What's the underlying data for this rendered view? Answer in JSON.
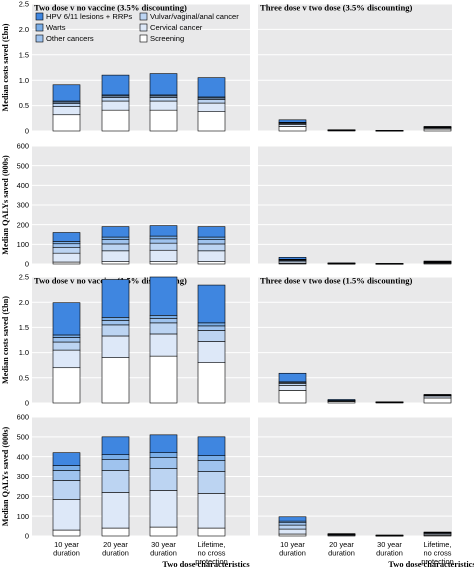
{
  "colors": {
    "panel_bg": "#e9e9ea",
    "grid": "#ffffff",
    "hpv": "#3f86e0",
    "warts": "#7aaee8",
    "other_cancers": "#9fc3ee",
    "vulvar": "#bcd4f2",
    "cervical": "#dde8f8",
    "screening": "#ffffff",
    "outline": "#000000"
  },
  "legend": {
    "items": [
      {
        "key": "hpv",
        "label": "HPV 6/11 lesions + RRPs"
      },
      {
        "key": "vulvar",
        "label": "Vulvar/vaginal/anal cancer"
      },
      {
        "key": "warts",
        "label": "Warts"
      },
      {
        "key": "cervical",
        "label": "Cervical cancer"
      },
      {
        "key": "other_cancers",
        "label": "Other cancers"
      },
      {
        "key": "screening",
        "label": "Screening"
      }
    ]
  },
  "x_title": "Two dose characteristics",
  "x_title_right": "Two dose characteristics",
  "chart_data": [
    {
      "type": "bar",
      "stacked": true,
      "title": "Two dose v no vaccine (3.5% discounting)",
      "ylabel": "Median costs saved (£bn)",
      "ylim": [
        0,
        2.5
      ],
      "yticks": [
        "0",
        "0.5",
        "1.0",
        "1.5",
        "2.0",
        "2.5"
      ],
      "categories": [
        "10 year duration",
        "20 year duration",
        "30 year duration",
        "Lifetime, no cross protection"
      ],
      "series": [
        {
          "key": "screening",
          "values": [
            0.32,
            0.41,
            0.41,
            0.38
          ]
        },
        {
          "key": "cervical",
          "values": [
            0.16,
            0.18,
            0.18,
            0.17
          ]
        },
        {
          "key": "vulvar",
          "values": [
            0.06,
            0.07,
            0.07,
            0.07
          ]
        },
        {
          "key": "other_cancers",
          "values": [
            0.03,
            0.03,
            0.03,
            0.03
          ]
        },
        {
          "key": "warts",
          "values": [
            0.02,
            0.02,
            0.02,
            0.02
          ]
        },
        {
          "key": "hpv",
          "values": [
            0.32,
            0.39,
            0.42,
            0.38
          ]
        }
      ]
    },
    {
      "type": "bar",
      "stacked": true,
      "title": "Three dose v two dose (3.5% discounting)",
      "ylabel": "",
      "ylim": [
        0,
        2.5
      ],
      "yticks": [],
      "categories": [
        "10 year duration",
        "20 year duration",
        "30 year duration",
        "Lifetime, no cross protection"
      ],
      "series": [
        {
          "key": "screening",
          "values": [
            0.09,
            0.01,
            0.005,
            0.04
          ]
        },
        {
          "key": "cervical",
          "values": [
            0.04,
            0.005,
            0.003,
            0.02
          ]
        },
        {
          "key": "vulvar",
          "values": [
            0.02,
            0.002,
            0.001,
            0.01
          ]
        },
        {
          "key": "other_cancers",
          "values": [
            0.01,
            0.002,
            0.001,
            0.005
          ]
        },
        {
          "key": "warts",
          "values": [
            0.01,
            0.001,
            0.0,
            0.005
          ]
        },
        {
          "key": "hpv",
          "values": [
            0.05,
            0.005,
            0.002,
            0.01
          ]
        }
      ]
    },
    {
      "type": "bar",
      "stacked": true,
      "title": "",
      "ylabel": "Median QALYs saved (000s)",
      "ylim": [
        0,
        600
      ],
      "yticks": [
        "0",
        "100",
        "200",
        "300",
        "400",
        "500",
        "600"
      ],
      "categories": [
        "10 year duration",
        "20 year duration",
        "30 year duration",
        "Lifetime, no cross protection"
      ],
      "series": [
        {
          "key": "screening",
          "values": [
            10,
            12,
            12,
            12
          ]
        },
        {
          "key": "cervical",
          "values": [
            45,
            55,
            58,
            55
          ]
        },
        {
          "key": "vulvar",
          "values": [
            30,
            35,
            36,
            35
          ]
        },
        {
          "key": "other_cancers",
          "values": [
            18,
            22,
            22,
            22
          ]
        },
        {
          "key": "warts",
          "values": [
            12,
            13,
            14,
            13
          ]
        },
        {
          "key": "hpv",
          "values": [
            45,
            53,
            53,
            53
          ]
        }
      ]
    },
    {
      "type": "bar",
      "stacked": true,
      "title": "",
      "ylabel": "",
      "ylim": [
        0,
        600
      ],
      "yticks": [],
      "categories": [
        "10 year duration",
        "20 year duration",
        "30 year duration",
        "Lifetime, no cross protection"
      ],
      "series": [
        {
          "key": "screening",
          "values": [
            3,
            1,
            0.5,
            2
          ]
        },
        {
          "key": "cervical",
          "values": [
            8,
            1.5,
            0.8,
            4
          ]
        },
        {
          "key": "vulvar",
          "values": [
            6,
            1,
            0.5,
            3
          ]
        },
        {
          "key": "other_cancers",
          "values": [
            4,
            0.5,
            0.3,
            2
          ]
        },
        {
          "key": "warts",
          "values": [
            3,
            0.5,
            0.2,
            1
          ]
        },
        {
          "key": "hpv",
          "values": [
            10,
            1,
            0.5,
            3
          ]
        }
      ]
    },
    {
      "type": "bar",
      "stacked": true,
      "title": "Two dose v no vaccine (1.5% discounting)",
      "ylabel": "Median costs saved (£bn)",
      "ylim": [
        0,
        2.5
      ],
      "yticks": [
        "0",
        "0.5",
        "1.0",
        "1.5",
        "2.0",
        "2.5"
      ],
      "categories": [
        "10 year duration",
        "20 year duration",
        "30 year duration",
        "Lifetime, no cross protection"
      ],
      "series": [
        {
          "key": "screening",
          "values": [
            0.7,
            0.9,
            0.93,
            0.8
          ]
        },
        {
          "key": "cervical",
          "values": [
            0.35,
            0.43,
            0.44,
            0.42
          ]
        },
        {
          "key": "vulvar",
          "values": [
            0.16,
            0.22,
            0.22,
            0.22
          ]
        },
        {
          "key": "other_cancers",
          "values": [
            0.09,
            0.09,
            0.09,
            0.09
          ]
        },
        {
          "key": "warts",
          "values": [
            0.05,
            0.06,
            0.06,
            0.06
          ]
        },
        {
          "key": "hpv",
          "values": [
            0.64,
            0.75,
            0.76,
            0.75
          ]
        }
      ]
    },
    {
      "type": "bar",
      "stacked": true,
      "title": "Three dose v two dose (1.5% discounting)",
      "ylabel": "",
      "ylim": [
        0,
        2.5
      ],
      "yticks": [],
      "categories": [
        "10 year duration",
        "20 year duration",
        "30 year duration",
        "Lifetime, no cross protection"
      ],
      "series": [
        {
          "key": "screening",
          "values": [
            0.25,
            0.03,
            0.01,
            0.1
          ]
        },
        {
          "key": "cervical",
          "values": [
            0.1,
            0.01,
            0.005,
            0.04
          ]
        },
        {
          "key": "vulvar",
          "values": [
            0.04,
            0.005,
            0.002,
            0.01
          ]
        },
        {
          "key": "other_cancers",
          "values": [
            0.02,
            0.003,
            0.001,
            0.005
          ]
        },
        {
          "key": "warts",
          "values": [
            0.01,
            0.002,
            0.001,
            0.005
          ]
        },
        {
          "key": "hpv",
          "values": [
            0.17,
            0.02,
            0.005,
            0.01
          ]
        }
      ]
    },
    {
      "type": "bar",
      "stacked": true,
      "title": "",
      "ylabel": "Median QALYs saved (000s)",
      "ylim": [
        0,
        600
      ],
      "yticks": [
        "0",
        "100",
        "200",
        "300",
        "400",
        "500",
        "600"
      ],
      "categories": [
        "10 year duration",
        "20 year duration",
        "30 year duration",
        "Lifetime, no cross protection"
      ],
      "series": [
        {
          "key": "screening",
          "values": [
            30,
            40,
            45,
            40
          ]
        },
        {
          "key": "cervical",
          "values": [
            155,
            180,
            185,
            175
          ]
        },
        {
          "key": "vulvar",
          "values": [
            95,
            110,
            110,
            110
          ]
        },
        {
          "key": "other_cancers",
          "values": [
            50,
            55,
            55,
            55
          ]
        },
        {
          "key": "warts",
          "values": [
            25,
            25,
            25,
            25
          ]
        },
        {
          "key": "hpv",
          "values": [
            65,
            90,
            90,
            95
          ]
        }
      ]
    },
    {
      "type": "bar",
      "stacked": true,
      "title": "",
      "ylabel": "",
      "ylim": [
        0,
        600
      ],
      "yticks": [],
      "categories": [
        "10 year duration",
        "20 year duration",
        "30 year duration",
        "Lifetime, no cross protection"
      ],
      "series": [
        {
          "key": "screening",
          "values": [
            10,
            2,
            1,
            4
          ]
        },
        {
          "key": "cervical",
          "values": [
            25,
            4,
            1,
            6
          ]
        },
        {
          "key": "vulvar",
          "values": [
            20,
            2,
            1,
            4
          ]
        },
        {
          "key": "other_cancers",
          "values": [
            12,
            1,
            0.5,
            2
          ]
        },
        {
          "key": "warts",
          "values": [
            8,
            1,
            0.5,
            2
          ]
        },
        {
          "key": "hpv",
          "values": [
            22,
            2,
            1,
            2
          ]
        }
      ]
    }
  ]
}
